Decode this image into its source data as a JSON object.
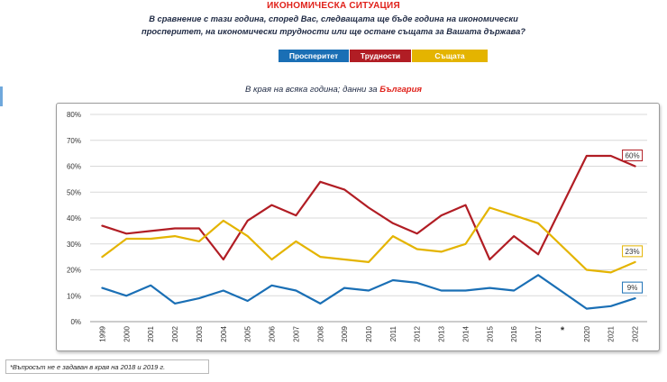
{
  "header": {
    "title": "ИКОНОМИЧЕСКА СИТУАЦИЯ",
    "question": "В сравнение с тази година, според Вас, следващата ще бъде година на икономически просперитет, на икономически трудности или ще остане същата за Вашата държава?",
    "subtitle_prefix": "В края на всяка година; данни за ",
    "subtitle_country": "България"
  },
  "legend": [
    {
      "label": "Просперитет",
      "color": "#1a6fb5"
    },
    {
      "label": "Трудности",
      "color": "#b11d24"
    },
    {
      "label": "Същата",
      "color": "#e4b400"
    }
  ],
  "footnote": "*Въпросът не е задаван в края на 2018 и 2019 г.",
  "chart_data": {
    "type": "line",
    "title": "ИКОНОМИЧЕСКА СИТУАЦИЯ",
    "xlabel": "",
    "ylabel": "",
    "categories": [
      "1999",
      "2000",
      "2001",
      "2002",
      "2003",
      "2004",
      "2005",
      "2006",
      "2007",
      "2008",
      "2009",
      "2010",
      "2011",
      "2012",
      "2013",
      "2014",
      "2015",
      "2016",
      "2017",
      "*",
      "2020",
      "2021",
      "2022"
    ],
    "y_ticks": [
      "0%",
      "10%",
      "20%",
      "30%",
      "40%",
      "50%",
      "60%",
      "70%",
      "80%"
    ],
    "ylim": [
      0,
      80
    ],
    "grid": true,
    "series": [
      {
        "name": "Просперитет",
        "color": "#1a6fb5",
        "values": [
          13,
          10,
          14,
          7,
          9,
          12,
          8,
          14,
          12,
          7,
          13,
          12,
          16,
          15,
          12,
          12,
          13,
          12,
          18,
          null,
          5,
          6,
          9
        ],
        "end_label": "9%"
      },
      {
        "name": "Трудности",
        "color": "#b11d24",
        "values": [
          37,
          34,
          35,
          36,
          36,
          24,
          39,
          45,
          41,
          54,
          51,
          44,
          38,
          34,
          41,
          45,
          24,
          33,
          26,
          null,
          64,
          64,
          60
        ],
        "end_label": "60%"
      },
      {
        "name": "Същата",
        "color": "#e4b400",
        "values": [
          25,
          32,
          32,
          33,
          31,
          39,
          33,
          24,
          31,
          25,
          24,
          23,
          33,
          28,
          27,
          30,
          44,
          41,
          38,
          null,
          20,
          19,
          23
        ],
        "end_label": "23%"
      }
    ]
  }
}
